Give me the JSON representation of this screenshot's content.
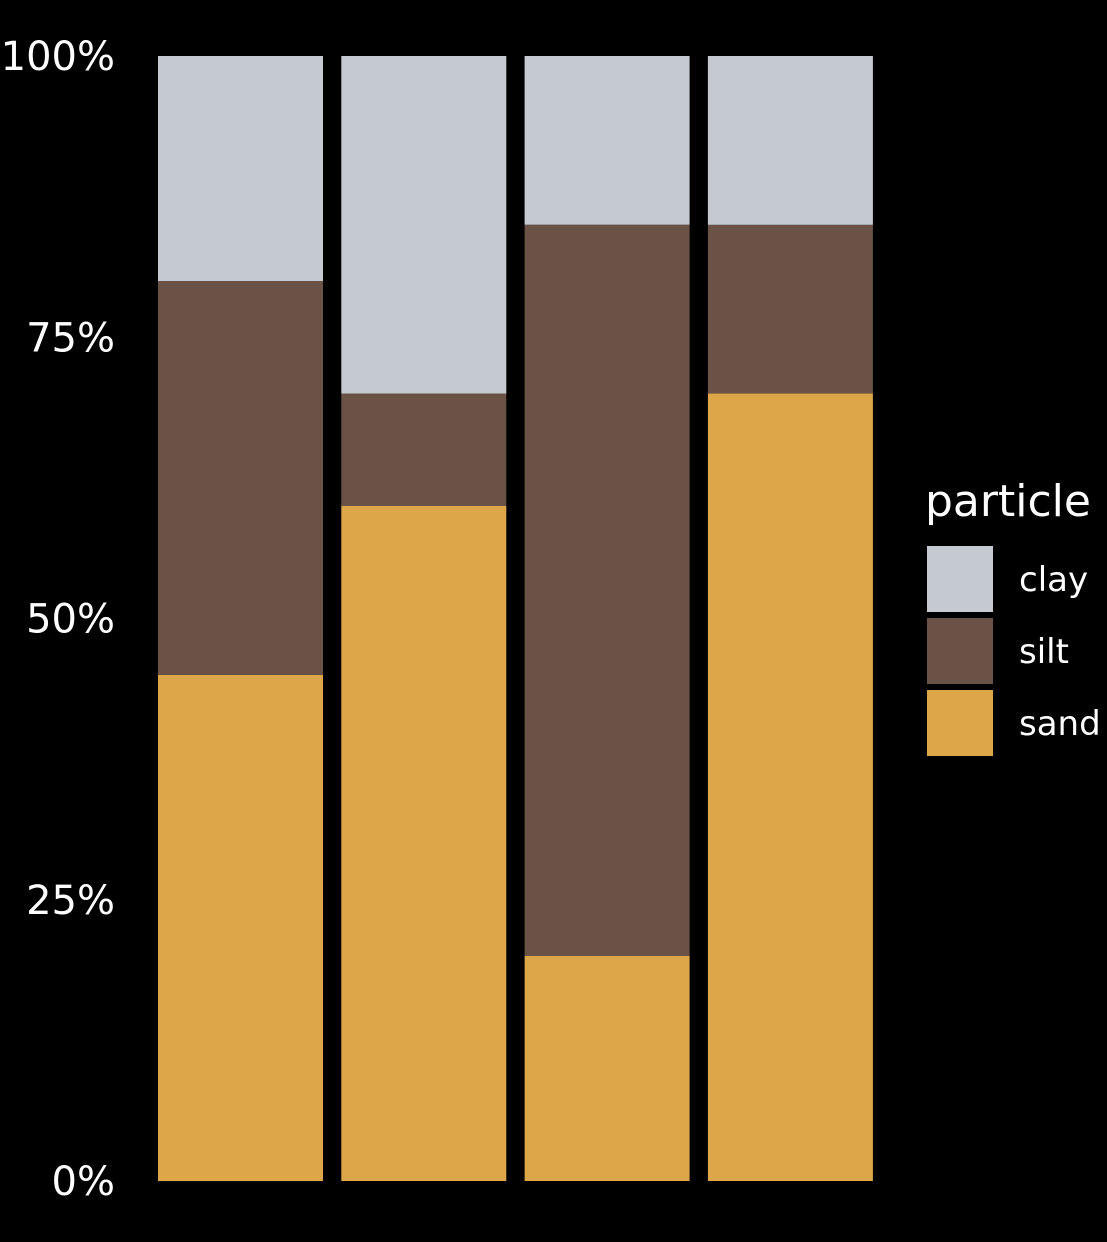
{
  "chart_data": {
    "type": "bar",
    "stacked": true,
    "normalized": true,
    "categories": [
      "",
      "",
      "",
      ""
    ],
    "series": [
      {
        "name": "sand",
        "values": [
          0.45,
          0.6,
          0.2,
          0.7
        ],
        "color": "#DCA649"
      },
      {
        "name": "silt",
        "values": [
          0.35,
          0.1,
          0.65,
          0.15
        ],
        "color": "#6A5246"
      },
      {
        "name": "clay",
        "values": [
          0.2,
          0.3,
          0.15,
          0.15
        ],
        "color": "#C5CAD1"
      }
    ],
    "ylim": [
      0,
      1
    ],
    "yticks": [
      {
        "value": 0,
        "label": "0%"
      },
      {
        "value": 0.25,
        "label": "25%"
      },
      {
        "value": 0.5,
        "label": "50%"
      },
      {
        "value": 0.75,
        "label": "75%"
      },
      {
        "value": 1,
        "label": "100%"
      }
    ],
    "grid": false,
    "background": "#000000",
    "text_color": "#FFFFFF",
    "legend": {
      "title": "particle",
      "placement": "right",
      "order": [
        "clay",
        "silt",
        "sand"
      ]
    },
    "title": "",
    "xlabel": "",
    "ylabel": ""
  }
}
